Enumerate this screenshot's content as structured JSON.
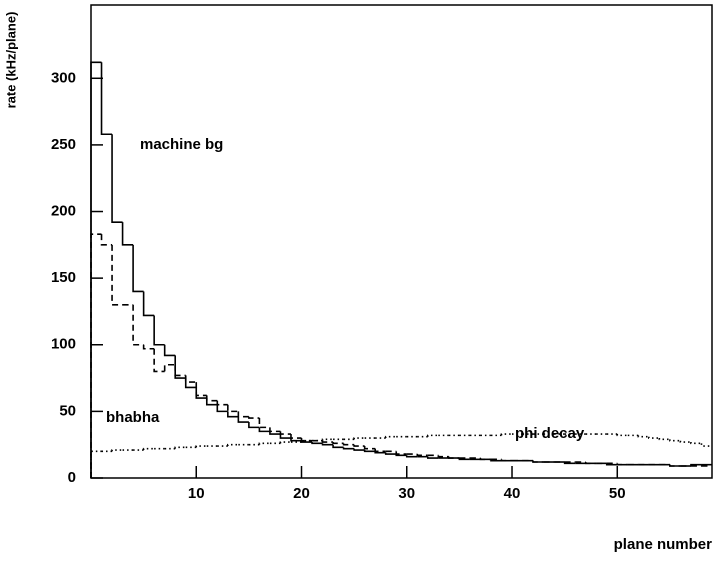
{
  "chart_data": {
    "type": "histogram",
    "x_label": "plane number",
    "y_label": "rate (kHz/plane)",
    "bins": [
      0,
      1,
      2,
      3,
      4,
      5,
      6,
      7,
      8,
      9,
      10,
      11,
      12,
      13,
      14,
      15,
      16,
      17,
      18,
      19,
      20,
      21,
      22,
      23,
      24,
      25,
      26,
      27,
      28,
      29,
      30,
      31,
      32,
      33,
      34,
      35,
      36,
      37,
      38,
      39,
      40,
      41,
      42,
      43,
      44,
      45,
      46,
      47,
      48,
      49,
      50,
      51,
      52,
      53,
      54,
      55,
      56,
      57,
      58,
      59
    ],
    "series": [
      {
        "name": "machine bg",
        "color": "#000000",
        "linestyle": "solid",
        "values": [
          312,
          258,
          192,
          175,
          140,
          122,
          100,
          92,
          75,
          68,
          60,
          55,
          50,
          46,
          42,
          38,
          35,
          33,
          30,
          28,
          27,
          26,
          25,
          23,
          22,
          21,
          20,
          19,
          18,
          17,
          16,
          16,
          15,
          15,
          15,
          14,
          14,
          14,
          13,
          13,
          13,
          13,
          12,
          12,
          12,
          11,
          11,
          11,
          11,
          10,
          10,
          10,
          10,
          10,
          10,
          9,
          9,
          10,
          10
        ]
      },
      {
        "name": "bhabha",
        "color": "#000000",
        "linestyle": "dashed",
        "values": [
          183,
          175,
          130,
          130,
          100,
          97,
          80,
          85,
          77,
          72,
          62,
          58,
          55,
          50,
          46,
          45,
          38,
          35,
          33,
          30,
          28,
          28,
          27,
          26,
          25,
          24,
          22,
          20,
          20,
          18,
          18,
          17,
          17,
          16,
          15,
          15,
          15,
          14,
          14,
          13,
          13,
          13,
          12,
          12,
          12,
          12,
          12,
          11,
          11,
          11,
          10,
          10,
          10,
          10,
          10,
          9,
          9,
          9,
          9
        ]
      },
      {
        "name": "phi decay",
        "color": "#000000",
        "linestyle": "dotted",
        "values": [
          20,
          20,
          21,
          21,
          21,
          22,
          22,
          22,
          23,
          23,
          24,
          24,
          24,
          25,
          25,
          25,
          26,
          26,
          27,
          27,
          28,
          28,
          29,
          29,
          29,
          30,
          30,
          30,
          31,
          31,
          31,
          31,
          32,
          32,
          32,
          32,
          32,
          32,
          32,
          33,
          33,
          33,
          33,
          33,
          33,
          33,
          33,
          33,
          33,
          33,
          32,
          32,
          31,
          30,
          29,
          28,
          27,
          26,
          24
        ]
      }
    ],
    "xlim": [
      0,
      59
    ],
    "xticks": [
      10,
      20,
      30,
      40,
      50
    ],
    "ylim": [
      0,
      355
    ],
    "yticks": [
      0,
      50,
      100,
      150,
      200,
      250,
      300
    ],
    "grid": false
  }
}
